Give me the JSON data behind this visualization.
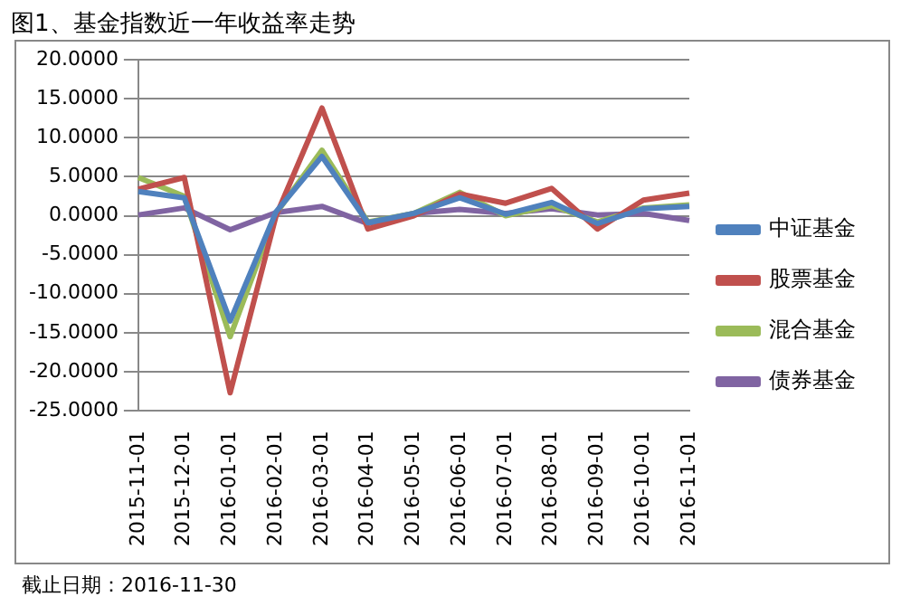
{
  "chart_data": {
    "type": "line",
    "title": "图1、基金指数近一年收益率走势",
    "annotations": [
      "截止日期：2016-11-30"
    ],
    "categories": [
      "2015-11-01",
      "2015-12-01",
      "2016-01-01",
      "2016-02-01",
      "2016-03-01",
      "2016-04-01",
      "2016-05-01",
      "2016-06-01",
      "2016-07-01",
      "2016-08-01",
      "2016-09-01",
      "2016-10-01",
      "2016-11-01"
    ],
    "series": [
      {
        "name": "中证基金",
        "color": "#4f81bd",
        "values": [
          3.1,
          2.3,
          -13.5,
          0.5,
          7.6,
          -0.9,
          0.3,
          2.3,
          0.2,
          1.7,
          -1.0,
          0.9,
          1.2
        ]
      },
      {
        "name": "股票基金",
        "color": "#c0504d",
        "values": [
          3.4,
          4.9,
          -22.7,
          0.0,
          13.8,
          -1.7,
          0.0,
          2.8,
          1.6,
          3.5,
          -1.7,
          2.0,
          2.9
        ]
      },
      {
        "name": "混合基金",
        "color": "#9bbb59",
        "values": [
          4.9,
          2.5,
          -15.5,
          0.3,
          8.4,
          -0.8,
          0.3,
          3.0,
          0.0,
          1.3,
          -0.8,
          1.0,
          1.4
        ]
      },
      {
        "name": "债券基金",
        "color": "#8064a2",
        "values": [
          0.1,
          1.0,
          -1.8,
          0.4,
          1.2,
          -1.0,
          0.3,
          0.8,
          0.3,
          0.9,
          0.1,
          0.3,
          -0.6
        ]
      }
    ],
    "ylim": [
      -25,
      20
    ],
    "yticks": [
      {
        "value": -25,
        "label": "-25.0000"
      },
      {
        "value": -20,
        "label": "-20.0000"
      },
      {
        "value": -15,
        "label": "-15.0000"
      },
      {
        "value": -10,
        "label": "-10.0000"
      },
      {
        "value": -5,
        "label": "-5.0000"
      },
      {
        "value": 0,
        "label": "0.0000"
      },
      {
        "value": 5,
        "label": "5.0000"
      },
      {
        "value": 10,
        "label": "10.0000"
      },
      {
        "value": 15,
        "label": "15.0000"
      },
      {
        "value": 20,
        "label": "20.0000"
      }
    ],
    "grid": "y",
    "legend": "right",
    "marker": "none",
    "line_style": "solid"
  }
}
